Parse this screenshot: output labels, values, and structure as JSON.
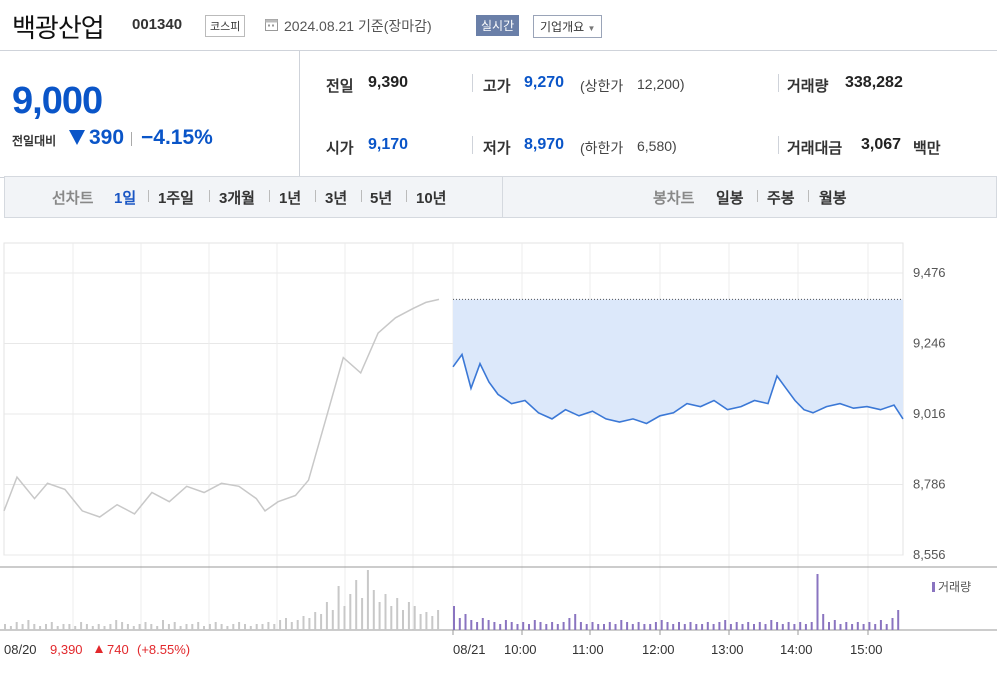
{
  "header": {
    "title": "백광산업",
    "code": "001340",
    "market": "코스피",
    "date": "2024.08.21 기준(장마감)",
    "realtime": "실시간",
    "company_info": "기업개요"
  },
  "summary": {
    "price": "9,000",
    "change_label": "전일대비",
    "change_value": "390",
    "change_percent": "−4.15%",
    "prev_label": "전일",
    "prev": "9,390",
    "open_label": "시가",
    "open": "9,170",
    "high_label": "고가",
    "high": "9,270",
    "upper_limit_label": "(상한가",
    "upper_limit": "12,200)",
    "low_label": "저가",
    "low": "8,970",
    "lower_limit_label": "(하한가",
    "lower_limit": "6,580)",
    "volume_label": "거래량",
    "volume": "338,282",
    "amount_label": "거래대금",
    "amount": "3,067",
    "amount_unit": "백만"
  },
  "periods": {
    "line_label": "선차트",
    "line": [
      "1일",
      "1주일",
      "3개월",
      "1년",
      "3년",
      "5년",
      "10년"
    ],
    "selected": "1일",
    "candle_label": "봉차트",
    "candle": [
      "일봉",
      "주봉",
      "월봉"
    ]
  },
  "colors": {
    "accent": "#0a55c8",
    "today_line": "#3b78d6",
    "today_fill": "#dce8fa",
    "prev_line": "#c8c8c8",
    "volume_today": "#8a74c0",
    "up_red": "#e2282c"
  },
  "chart_data": {
    "type": "line",
    "y_ticks": [
      "9,476",
      "9,246",
      "9,016",
      "8,786",
      "8,556"
    ],
    "ylim": [
      8556,
      9476
    ],
    "x_ticks": [
      "08/21",
      "10:00",
      "11:00",
      "12:00",
      "13:00",
      "14:00",
      "15:00"
    ],
    "prev_day_label": "08/20",
    "prev_day_close": "9,390",
    "prev_day_change": "740",
    "prev_day_change_pct": "(+8.55%)",
    "volume_legend": "거래량",
    "series": [
      {
        "day": "08/20",
        "points": [
          [
            0,
            8700
          ],
          [
            0.03,
            8810
          ],
          [
            0.07,
            8740
          ],
          [
            0.1,
            8790
          ],
          [
            0.14,
            8770
          ],
          [
            0.18,
            8700
          ],
          [
            0.22,
            8680
          ],
          [
            0.26,
            8720
          ],
          [
            0.3,
            8690
          ],
          [
            0.34,
            8760
          ],
          [
            0.38,
            8730
          ],
          [
            0.42,
            8780
          ],
          [
            0.46,
            8760
          ],
          [
            0.5,
            8790
          ],
          [
            0.54,
            8780
          ],
          [
            0.58,
            8740
          ],
          [
            0.6,
            8700
          ],
          [
            0.63,
            8730
          ],
          [
            0.67,
            8750
          ],
          [
            0.7,
            8800
          ],
          [
            0.74,
            9000
          ],
          [
            0.78,
            9200
          ],
          [
            0.82,
            9150
          ],
          [
            0.86,
            9280
          ],
          [
            0.9,
            9330
          ],
          [
            0.94,
            9360
          ],
          [
            0.97,
            9380
          ],
          [
            1.0,
            9390
          ]
        ]
      },
      {
        "day": "08/21",
        "points": [
          [
            0,
            9170
          ],
          [
            0.02,
            9210
          ],
          [
            0.04,
            9100
          ],
          [
            0.06,
            9180
          ],
          [
            0.08,
            9120
          ],
          [
            0.1,
            9080
          ],
          [
            0.13,
            9050
          ],
          [
            0.16,
            9060
          ],
          [
            0.19,
            9020
          ],
          [
            0.22,
            9000
          ],
          [
            0.25,
            9030
          ],
          [
            0.28,
            9010
          ],
          [
            0.31,
            9025
          ],
          [
            0.34,
            9000
          ],
          [
            0.37,
            8990
          ],
          [
            0.4,
            9000
          ],
          [
            0.43,
            8985
          ],
          [
            0.46,
            9010
          ],
          [
            0.49,
            9020
          ],
          [
            0.52,
            9050
          ],
          [
            0.55,
            9040
          ],
          [
            0.58,
            9060
          ],
          [
            0.61,
            9030
          ],
          [
            0.64,
            9040
          ],
          [
            0.67,
            9060
          ],
          [
            0.7,
            9050
          ],
          [
            0.72,
            9140
          ],
          [
            0.74,
            9100
          ],
          [
            0.76,
            9060
          ],
          [
            0.78,
            9030
          ],
          [
            0.8,
            9020
          ],
          [
            0.83,
            9040
          ],
          [
            0.86,
            9050
          ],
          [
            0.89,
            9035
          ],
          [
            0.92,
            9040
          ],
          [
            0.95,
            9030
          ],
          [
            0.98,
            9045
          ],
          [
            1.0,
            9000
          ]
        ]
      }
    ],
    "prev_volume": [
      3,
      2,
      4,
      3,
      5,
      3,
      2,
      3,
      4,
      2,
      3,
      3,
      2,
      4,
      3,
      2,
      3,
      2,
      3,
      5,
      4,
      3,
      2,
      3,
      4,
      3,
      2,
      5,
      3,
      4,
      2,
      3,
      3,
      4,
      2,
      3,
      4,
      3,
      2,
      3,
      4,
      3,
      2,
      3,
      3,
      4,
      3,
      5,
      6,
      4,
      5,
      7,
      6,
      9,
      8,
      14,
      10,
      22,
      12,
      18,
      25,
      16,
      30,
      20,
      14,
      18,
      12,
      16,
      10,
      14,
      12,
      8,
      9,
      7,
      10
    ],
    "today_volume": [
      12,
      6,
      8,
      5,
      4,
      6,
      5,
      4,
      3,
      5,
      4,
      3,
      4,
      3,
      5,
      4,
      3,
      4,
      3,
      4,
      6,
      8,
      4,
      3,
      4,
      3,
      3,
      4,
      3,
      5,
      4,
      3,
      4,
      3,
      3,
      4,
      5,
      4,
      3,
      4,
      3,
      4,
      3,
      3,
      4,
      3,
      4,
      5,
      3,
      4,
      3,
      4,
      3,
      4,
      3,
      5,
      4,
      3,
      4,
      3,
      4,
      3,
      4,
      28,
      8,
      4,
      5,
      3,
      4,
      3,
      4,
      3,
      4,
      3,
      5,
      3,
      6,
      10
    ]
  }
}
